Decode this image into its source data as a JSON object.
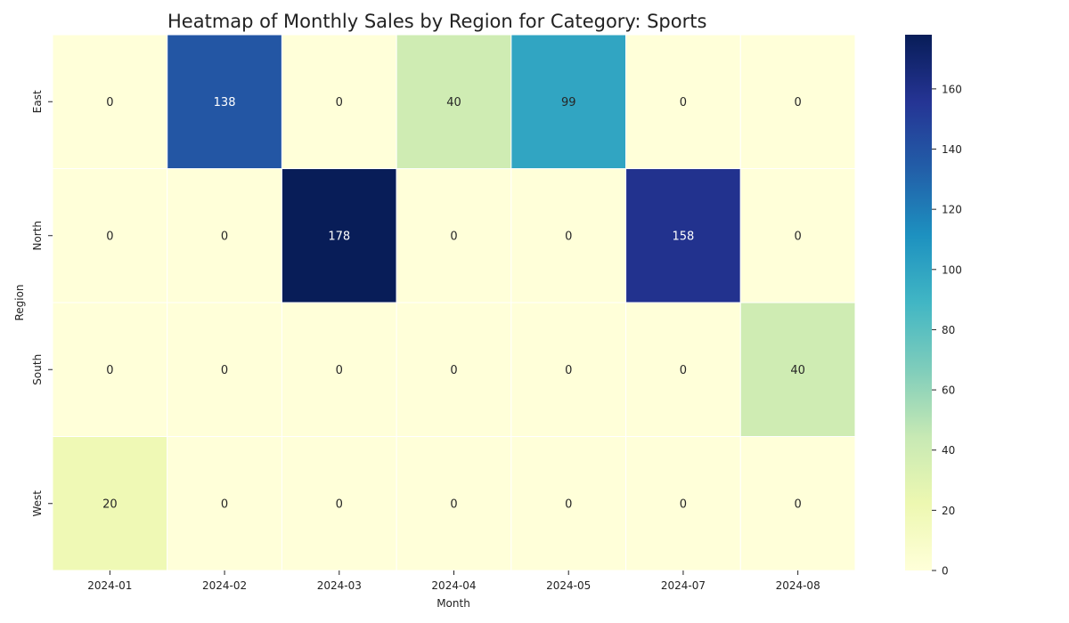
{
  "chart_data": {
    "type": "heatmap",
    "title": "Heatmap of Monthly Sales by Region for Category: Sports",
    "xlabel": "Month",
    "ylabel": "Region",
    "x_categories": [
      "2024-01",
      "2024-02",
      "2024-03",
      "2024-04",
      "2024-05",
      "2024-07",
      "2024-08"
    ],
    "y_categories": [
      "East",
      "North",
      "South",
      "West"
    ],
    "values": [
      [
        0,
        138,
        0,
        40,
        99,
        0,
        0
      ],
      [
        0,
        0,
        178,
        0,
        0,
        158,
        0
      ],
      [
        0,
        0,
        0,
        0,
        0,
        0,
        40
      ],
      [
        20,
        0,
        0,
        0,
        0,
        0,
        0
      ]
    ],
    "colormap": "YlGnBu",
    "color_range": [
      0,
      178
    ],
    "colorbar_ticks": [
      0,
      20,
      40,
      60,
      80,
      100,
      120,
      140,
      160
    ],
    "annotations": true,
    "grid": false
  }
}
